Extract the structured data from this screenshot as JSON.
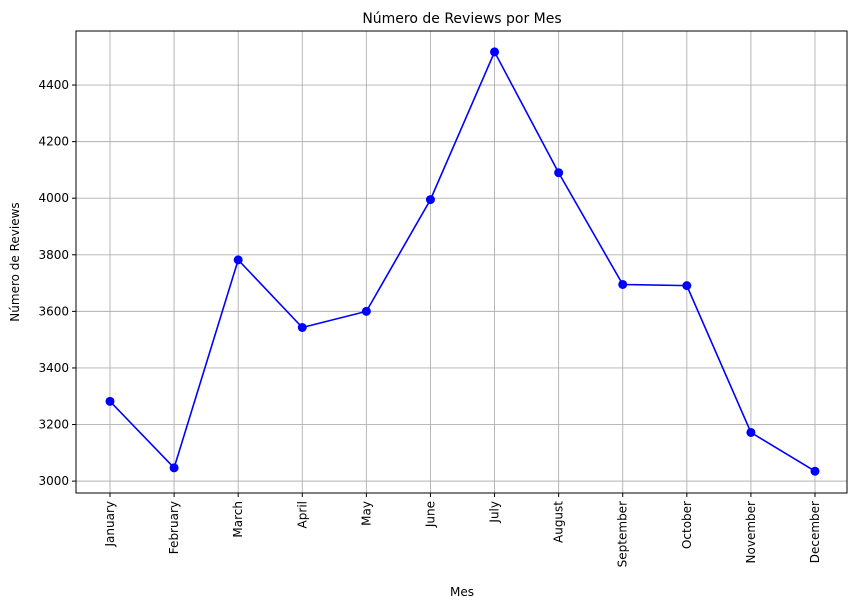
{
  "chart_data": {
    "type": "line",
    "title": "Número de Reviews por Mes",
    "xlabel": "Mes",
    "ylabel": "Número de Reviews",
    "categories": [
      "January",
      "February",
      "March",
      "April",
      "May",
      "June",
      "July",
      "August",
      "September",
      "October",
      "November",
      "December"
    ],
    "series": [
      {
        "values": [
          3282,
          3047,
          3782,
          3543,
          3600,
          3995,
          4517,
          4090,
          3695,
          3691,
          3172,
          3035
        ],
        "color": "#0000ff",
        "marker": "circle"
      }
    ],
    "yticks": [
      3000,
      3200,
      3400,
      3600,
      3800,
      4000,
      4200,
      4400
    ],
    "ylim": [
      2958,
      4591
    ],
    "grid": true
  }
}
